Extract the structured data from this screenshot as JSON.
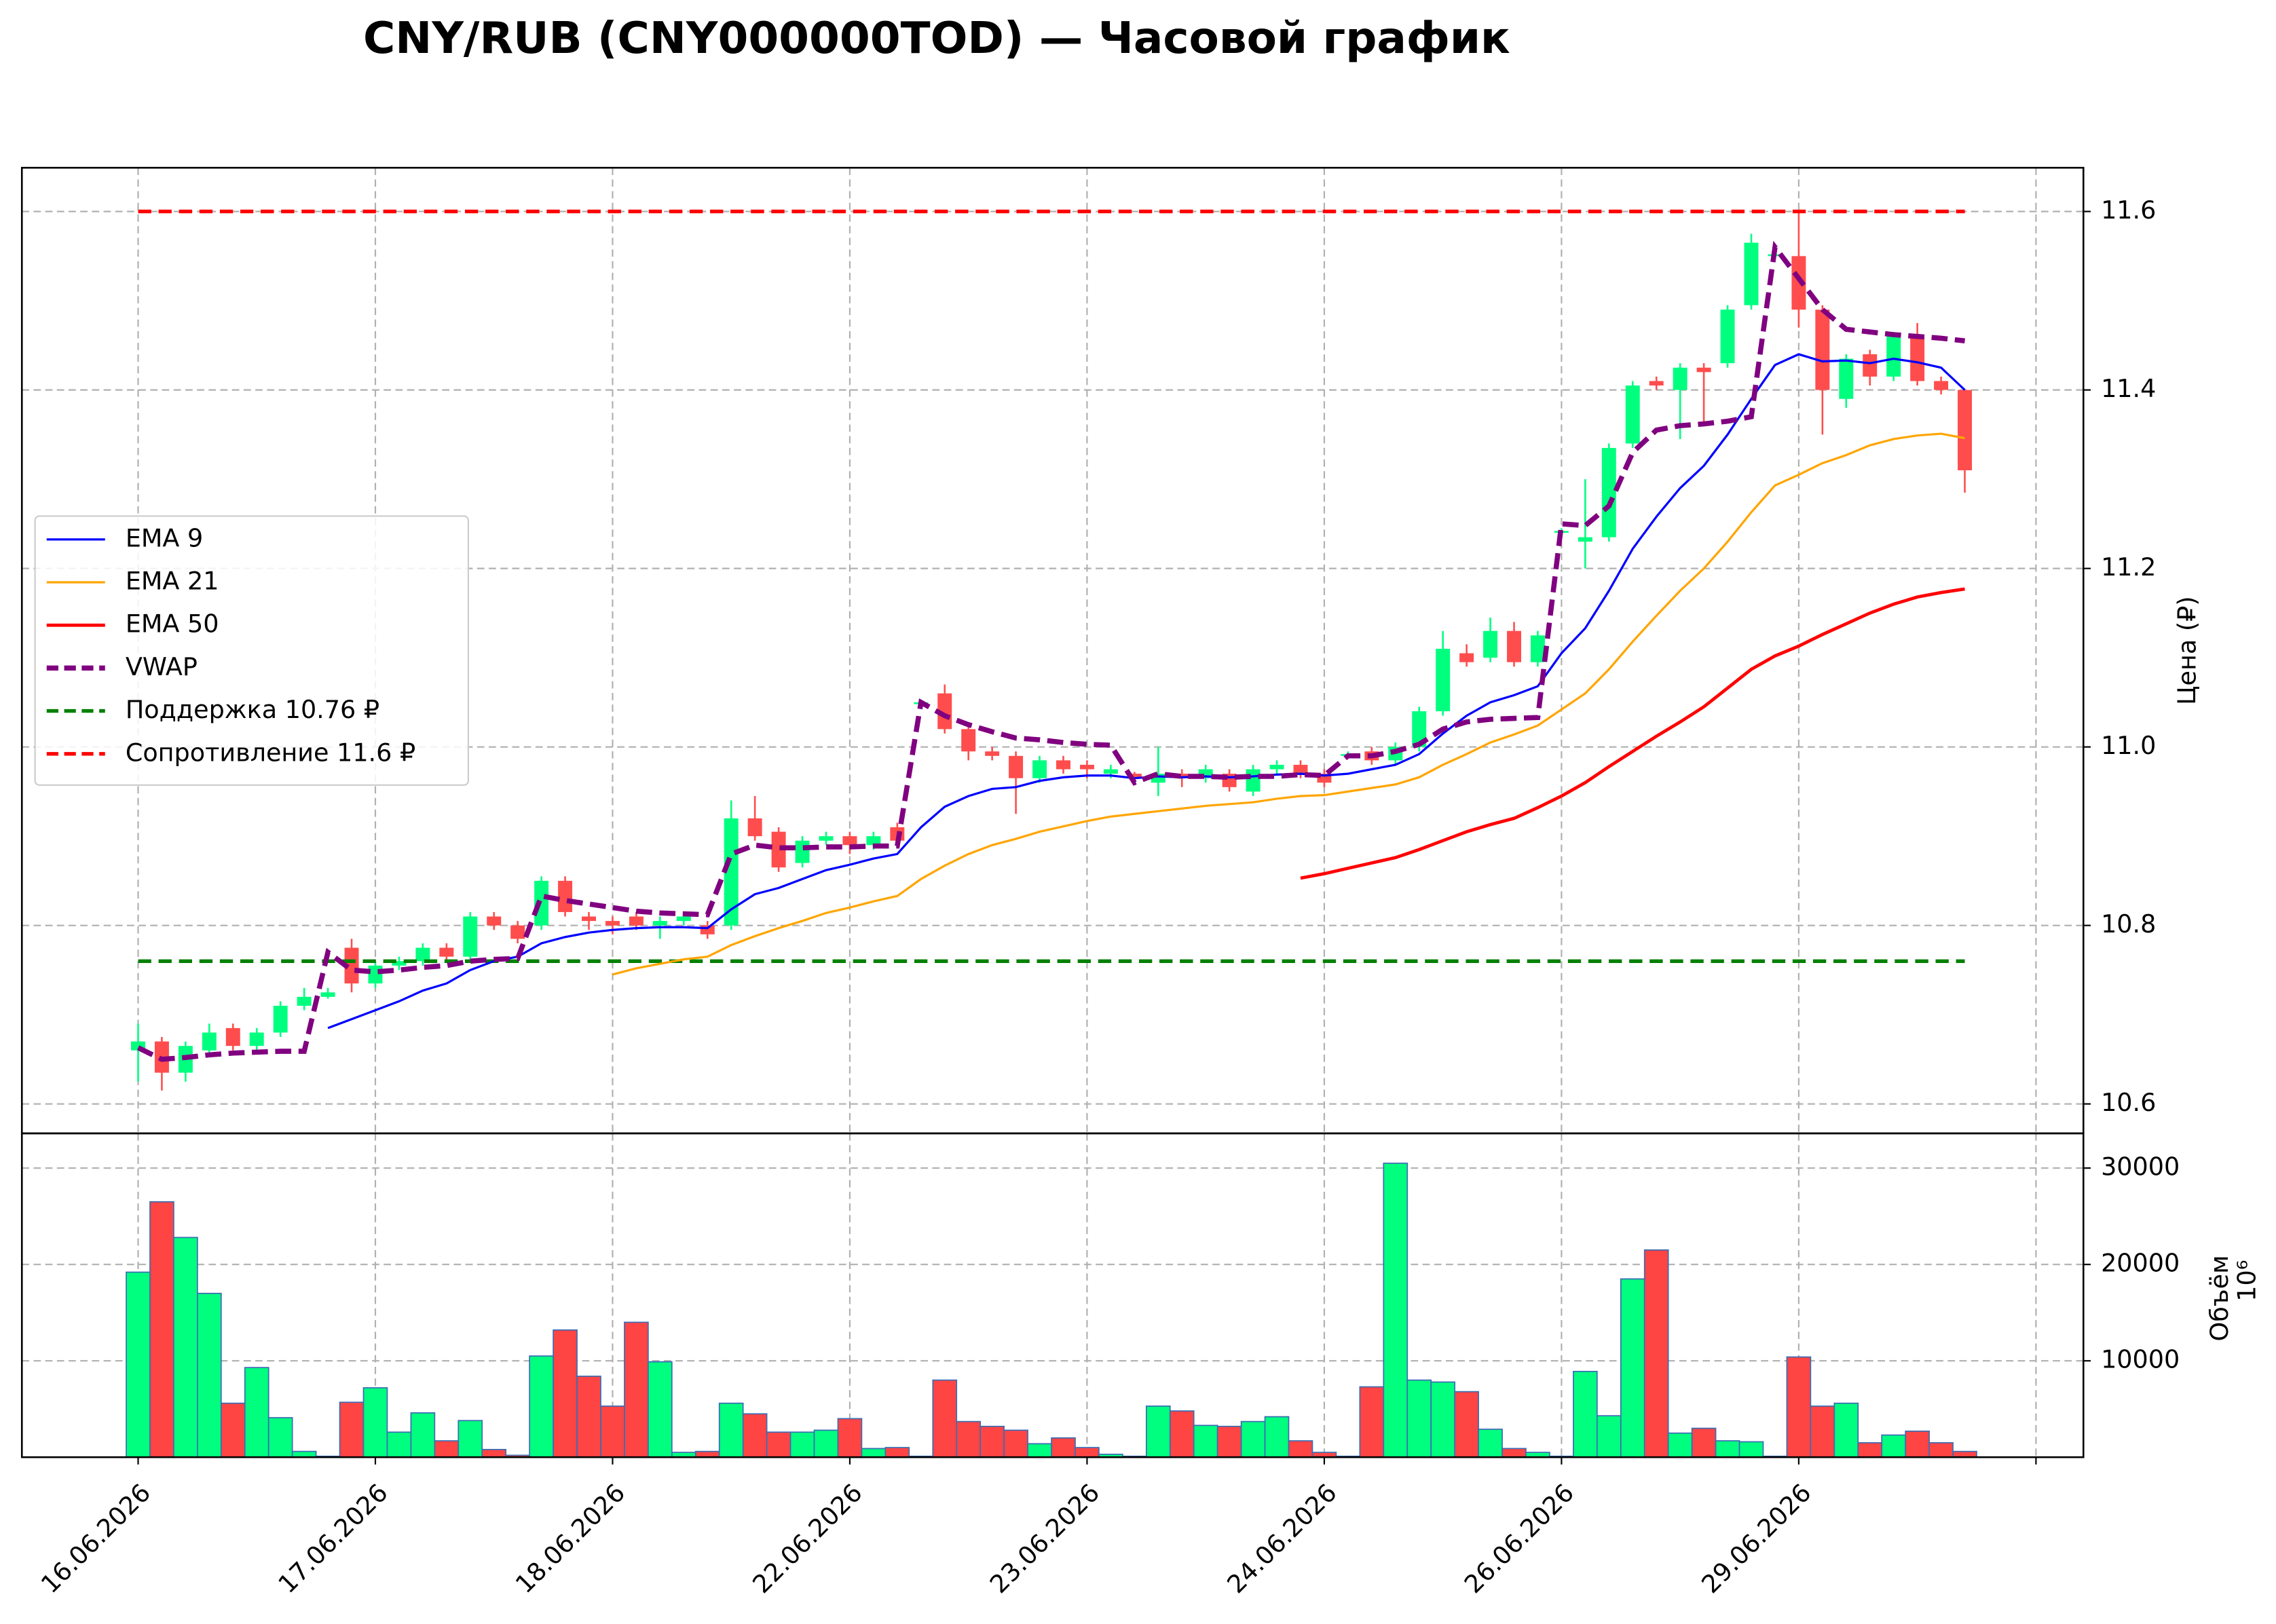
{
  "chart_data": [
    {
      "type": "candlestick",
      "title": "CNY/RUB (CNY000000TOD) — Часовой график",
      "ylabel": "Цена (₽)",
      "xlim": [
        -4.9,
        82
      ],
      "ylim": [
        10.567,
        11.649
      ],
      "yticks": [
        10.6,
        10.8,
        {
          "value": 11,
          "label": "11.0"
        },
        11.2,
        11.4,
        11.6
      ],
      "xticks": [
        {
          "value": 0,
          "label": "16.06.2026"
        },
        {
          "value": 10,
          "label": "17.06.2026"
        },
        {
          "value": 20,
          "label": "18.06.2026"
        },
        {
          "value": 30,
          "label": "22.06.2026"
        },
        {
          "value": 40,
          "label": "23.06.2026"
        },
        {
          "value": 50,
          "label": "24.06.2026"
        },
        {
          "value": 60,
          "label": "26.06.2026"
        },
        {
          "value": 70,
          "label": "29.06.2026"
        },
        {
          "value": 80,
          "label": null
        }
      ],
      "grid": true,
      "legend": "center left",
      "up_color": "#00ff7f",
      "down_color": "#ff4d4d",
      "open": [
        10.66,
        10.67,
        10.635,
        10.66,
        10.685,
        10.665,
        10.68,
        10.71,
        10.72,
        10.775,
        10.735,
        10.755,
        10.76,
        10.775,
        10.765,
        10.81,
        10.8,
        10.8,
        10.85,
        10.81,
        10.805,
        10.81,
        10.8,
        10.805,
        10.8,
        10.8,
        10.92,
        10.905,
        10.87,
        10.895,
        10.9,
        10.89,
        10.91,
        11.048,
        11.06,
        11.02,
        10.995,
        10.99,
        10.965,
        10.985,
        10.98,
        10.97,
        10.97,
        10.96,
        10.97,
        10.965,
        10.97,
        10.95,
        10.975,
        10.98,
        10.97,
        10.99,
        10.995,
        10.985,
        11.0,
        11.04,
        11.105,
        11.1,
        11.13,
        11.095,
        11.24,
        11.23,
        11.235,
        11.34,
        11.41,
        11.4,
        11.425,
        11.43,
        11.495,
        11.55,
        11.55,
        11.49,
        11.39,
        11.44,
        11.415,
        11.46,
        11.41,
        11.4
      ],
      "high": [
        10.69,
        10.675,
        10.67,
        10.69,
        10.69,
        10.685,
        10.715,
        10.73,
        10.73,
        10.785,
        10.76,
        10.765,
        10.78,
        10.78,
        10.815,
        10.815,
        10.805,
        10.855,
        10.855,
        10.815,
        10.81,
        10.815,
        10.81,
        10.815,
        10.805,
        10.94,
        10.945,
        10.91,
        10.9,
        10.905,
        10.905,
        10.905,
        10.915,
        11.052,
        11.07,
        11.025,
        11.0,
        10.995,
        10.99,
        10.99,
        10.985,
        10.98,
        10.972,
        11.0,
        10.975,
        10.98,
        10.975,
        10.98,
        10.985,
        10.985,
        10.975,
        10.995,
        11.0,
        11.005,
        11.045,
        11.13,
        11.115,
        11.145,
        11.14,
        11.13,
        11.245,
        11.3,
        11.34,
        11.41,
        11.415,
        11.43,
        11.43,
        11.495,
        11.575,
        11.556,
        11.6,
        11.495,
        11.44,
        11.445,
        11.465,
        11.475,
        11.415,
        11.4
      ],
      "low": [
        10.625,
        10.615,
        10.625,
        10.655,
        10.66,
        10.66,
        10.675,
        10.705,
        10.718,
        10.725,
        10.73,
        10.75,
        10.755,
        10.76,
        10.76,
        10.795,
        10.78,
        10.795,
        10.81,
        10.795,
        10.79,
        10.795,
        10.785,
        10.8,
        10.785,
        10.795,
        10.895,
        10.86,
        10.865,
        10.89,
        10.88,
        10.885,
        10.89,
        11.045,
        11.015,
        10.985,
        10.985,
        10.925,
        10.96,
        10.97,
        10.965,
        10.965,
        10.96,
        10.945,
        10.955,
        10.96,
        10.95,
        10.945,
        10.97,
        10.965,
        10.955,
        10.988,
        10.98,
        10.98,
        10.995,
        11.035,
        11.09,
        11.095,
        11.09,
        11.09,
        11.238,
        11.2,
        11.23,
        11.335,
        11.4,
        11.345,
        11.36,
        11.425,
        11.49,
        11.548,
        11.47,
        11.35,
        11.38,
        11.405,
        11.41,
        11.405,
        11.395,
        11.285
      ],
      "close": [
        10.67,
        10.635,
        10.665,
        10.68,
        10.665,
        10.68,
        10.71,
        10.72,
        10.725,
        10.735,
        10.755,
        10.76,
        10.775,
        10.765,
        10.81,
        10.8,
        10.785,
        10.85,
        10.815,
        10.805,
        10.8,
        10.8,
        10.805,
        10.81,
        10.79,
        10.92,
        10.9,
        10.865,
        10.895,
        10.9,
        10.89,
        10.9,
        10.895,
        11.05,
        11.02,
        10.995,
        10.99,
        10.965,
        10.985,
        10.975,
        10.975,
        10.975,
        10.965,
        10.97,
        10.965,
        10.975,
        10.955,
        10.975,
        10.98,
        10.97,
        10.96,
        10.992,
        10.985,
        11.0,
        11.04,
        11.11,
        11.095,
        11.13,
        11.095,
        11.125,
        11.242,
        11.235,
        11.335,
        11.405,
        11.405,
        11.425,
        11.42,
        11.49,
        11.565,
        11.552,
        11.49,
        11.4,
        11.435,
        11.415,
        11.46,
        11.41,
        11.4,
        11.31
      ],
      "series": [
        {
          "name": "EMA 9",
          "color": "#0000ff",
          "style": "solid",
          "width": 1.5,
          "values": [
            null,
            null,
            null,
            null,
            null,
            null,
            null,
            null,
            10.685,
            10.695,
            10.705,
            10.715,
            10.727,
            10.735,
            10.75,
            10.76,
            10.765,
            10.78,
            10.787,
            10.792,
            10.795,
            10.797,
            10.798,
            10.798,
            10.797,
            10.818,
            10.835,
            10.842,
            10.852,
            10.862,
            10.868,
            10.875,
            10.88,
            10.91,
            10.933,
            10.945,
            10.953,
            10.955,
            10.962,
            10.966,
            10.968,
            10.968,
            10.965,
            10.967,
            10.966,
            10.967,
            10.966,
            10.967,
            10.969,
            10.97,
            10.968,
            10.97,
            10.975,
            10.98,
            10.992,
            11.015,
            11.035,
            11.05,
            11.058,
            11.068,
            11.105,
            11.133,
            11.175,
            11.222,
            11.258,
            11.29,
            11.315,
            11.35,
            11.39,
            11.428,
            11.44,
            11.432,
            11.433,
            11.43,
            11.435,
            11.431,
            11.425,
            11.4
          ]
        },
        {
          "name": "EMA 21",
          "color": "#ffa500",
          "style": "solid",
          "width": 1.5,
          "values": [
            null,
            null,
            null,
            null,
            null,
            null,
            null,
            null,
            null,
            null,
            null,
            null,
            null,
            null,
            null,
            null,
            null,
            null,
            null,
            null,
            10.745,
            10.752,
            10.757,
            10.762,
            10.765,
            10.778,
            10.788,
            10.797,
            10.805,
            10.814,
            10.82,
            10.827,
            10.833,
            10.852,
            10.867,
            10.88,
            10.89,
            10.897,
            10.905,
            10.911,
            10.917,
            10.922,
            10.925,
            10.928,
            10.931,
            10.934,
            10.936,
            10.938,
            10.942,
            10.945,
            10.946,
            10.95,
            10.954,
            10.958,
            10.966,
            10.98,
            10.992,
            11.005,
            11.014,
            11.024,
            11.042,
            11.06,
            11.087,
            11.118,
            11.147,
            11.175,
            11.2,
            11.23,
            11.263,
            11.293,
            11.305,
            11.318,
            11.327,
            11.338,
            11.345,
            11.349,
            11.351,
            11.346
          ]
        },
        {
          "name": "EMA 50",
          "color": "#ff0000",
          "style": "solid",
          "width": 2.2,
          "values": [
            null,
            null,
            null,
            null,
            null,
            null,
            null,
            null,
            null,
            null,
            null,
            null,
            null,
            null,
            null,
            null,
            null,
            null,
            null,
            null,
            null,
            null,
            null,
            null,
            null,
            null,
            null,
            null,
            null,
            null,
            null,
            null,
            null,
            null,
            null,
            null,
            null,
            null,
            null,
            null,
            null,
            null,
            null,
            null,
            null,
            null,
            null,
            null,
            null,
            10.853,
            10.858,
            10.864,
            10.87,
            10.876,
            10.885,
            10.895,
            10.905,
            10.913,
            10.92,
            10.932,
            10.945,
            10.96,
            10.978,
            10.995,
            11.012,
            11.028,
            11.045,
            11.066,
            11.087,
            11.102,
            11.113,
            11.126,
            11.138,
            11.15,
            11.16,
            11.168,
            11.173,
            11.177
          ]
        },
        {
          "name": "VWAP",
          "color": "#800080",
          "style": "dashed",
          "width": 3.5,
          "values": [
            10.663,
            10.65,
            10.652,
            10.655,
            10.657,
            10.658,
            10.659,
            10.659,
            10.77,
            10.75,
            10.748,
            10.75,
            10.753,
            10.755,
            10.76,
            10.762,
            10.763,
            10.833,
            10.828,
            10.824,
            10.82,
            10.816,
            10.814,
            10.813,
            10.812,
            10.88,
            10.89,
            10.887,
            10.887,
            10.888,
            10.888,
            10.889,
            10.889,
            11.05,
            11.035,
            11.025,
            11.017,
            11.01,
            11.008,
            11.005,
            11.003,
            11.002,
            10.96,
            10.97,
            10.967,
            10.967,
            10.966,
            10.967,
            10.967,
            10.969,
            10.968,
            10.99,
            10.99,
            10.995,
            11.003,
            11.02,
            11.028,
            11.031,
            11.032,
            11.033,
            11.25,
            11.248,
            11.27,
            11.33,
            11.355,
            11.36,
            11.362,
            11.365,
            11.37,
            11.56,
            11.525,
            11.49,
            11.468,
            11.465,
            11.462,
            11.46,
            11.458,
            11.455
          ]
        }
      ],
      "hlines": [
        {
          "name": "Поддержка 10.76 ₽",
          "color": "#008000",
          "value": 10.76
        },
        {
          "name": "Сопротивление 11.6 ₽",
          "color": "#ff0000",
          "value": 11.6
        }
      ]
    },
    {
      "type": "bar",
      "ylabel": "Объём",
      "offset_label": "10⁶",
      "ylim": [
        0,
        33600
      ],
      "yticks": [
        10000,
        20000,
        30000
      ],
      "grid": true,
      "up_color": "#00ff7f",
      "down_color": "#ff4444",
      "edge_color": "#3b6db3",
      "values": [
        19200,
        26500,
        22800,
        17000,
        5600,
        9300,
        4100,
        600,
        100,
        5700,
        7200,
        2600,
        4600,
        1700,
        3800,
        800,
        200,
        10500,
        13200,
        8400,
        5300,
        14000,
        9900,
        500,
        600,
        5600,
        4500,
        2600,
        2600,
        2800,
        4000,
        900,
        1000,
        100,
        8000,
        3700,
        3200,
        2800,
        1400,
        2000,
        1000,
        300,
        100,
        5300,
        4800,
        3300,
        3200,
        3700,
        4200,
        1700,
        500,
        100,
        7300,
        30500,
        8000,
        7800,
        6800,
        2900,
        900,
        500,
        100,
        8900,
        4300,
        18500,
        21500,
        2500,
        3000,
        1700,
        1600,
        100,
        10400,
        5300,
        5600,
        1500,
        2300,
        2700,
        1500,
        600
      ]
    }
  ]
}
